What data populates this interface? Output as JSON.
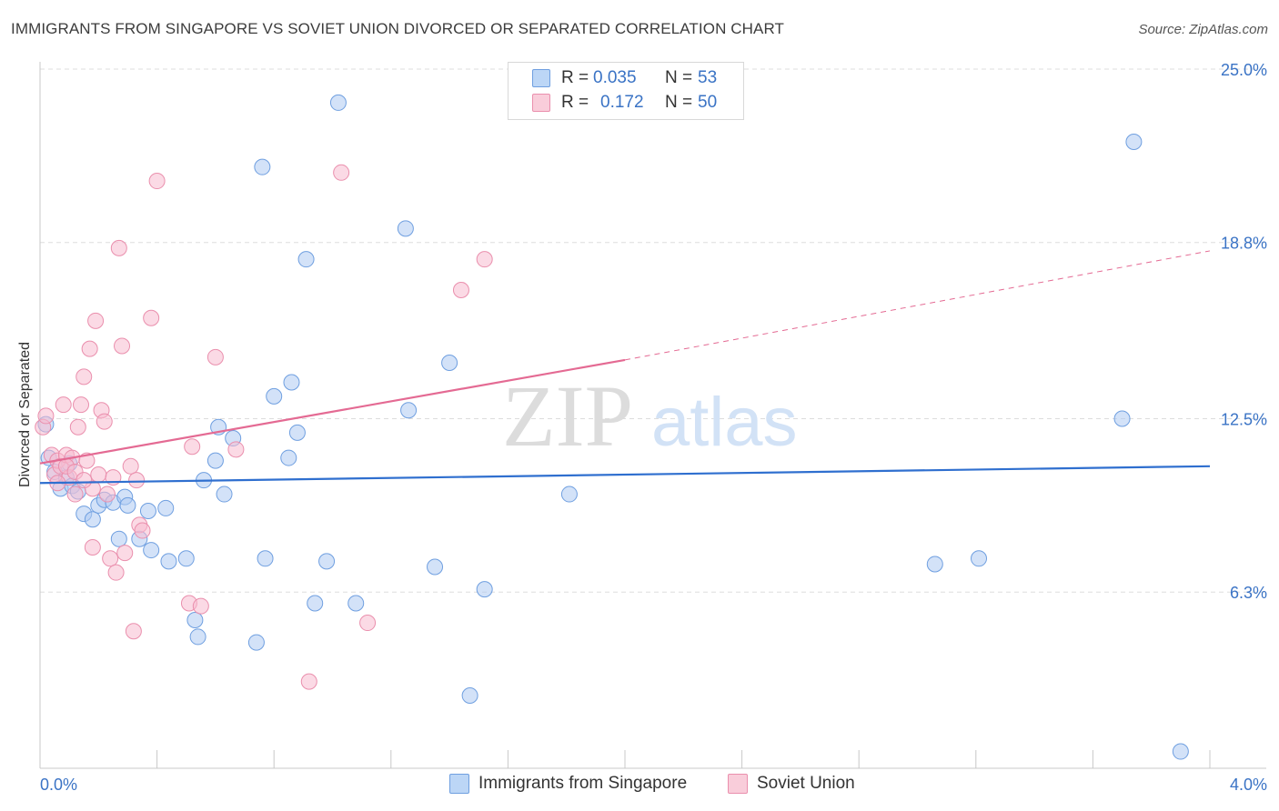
{
  "header": {
    "title": "IMMIGRANTS FROM SINGAPORE VS SOVIET UNION DIVORCED OR SEPARATED CORRELATION CHART",
    "source": "Source: ZipAtlas.com"
  },
  "watermark": {
    "zip": "ZIP",
    "atlas": "atlas"
  },
  "legend": {
    "row1": {
      "r_label": "R = ",
      "r_value": "0.035",
      "n_label": "N = ",
      "n_value": "53"
    },
    "row2": {
      "r_label": "R = ",
      "r_value": "0.172",
      "n_label": "N = ",
      "n_value": "50"
    }
  },
  "bottom_legend": {
    "series1": "Immigrants from Singapore",
    "series2": "Soviet Union"
  },
  "axis": {
    "x_min_label": "0.0%",
    "x_max_label": "4.0%"
  },
  "colors": {
    "blue_fill": "#aecbf2",
    "blue_stroke": "#6f9fe0",
    "blue_line": "#2f6fcf",
    "pink_fill": "#f7bcd0",
    "pink_stroke": "#ea8fad",
    "pink_line": "#e46a93",
    "tick_text": "#3a73c5",
    "grid": "#dddddd"
  },
  "chart_data": {
    "type": "scatter",
    "ylabel": "Divorced or Separated",
    "xlim": [
      0,
      4.0
    ],
    "ylim": [
      0,
      25.0
    ],
    "x_unit": "%",
    "y_ticks": [
      6.3,
      12.5,
      18.8,
      25.0
    ],
    "y_tick_labels": [
      "6.3%",
      "12.5%",
      "18.8%",
      "25.0%"
    ],
    "x_tick_labels": [
      "0.0%",
      "4.0%"
    ],
    "grid": true,
    "legend_position": "top-center",
    "series": [
      {
        "name": "Immigrants from Singapore",
        "color": "#aecbf2",
        "R": 0.035,
        "N": 53,
        "trend": {
          "x": [
            0.0,
            4.0
          ],
          "y": [
            10.2,
            10.8
          ],
          "style": "solid"
        },
        "points": [
          [
            0.02,
            12.3
          ],
          [
            0.03,
            11.1
          ],
          [
            0.05,
            10.6
          ],
          [
            0.07,
            10.0
          ],
          [
            0.09,
            10.4
          ],
          [
            0.11,
            10.1
          ],
          [
            0.13,
            9.9
          ],
          [
            0.15,
            9.1
          ],
          [
            0.18,
            8.9
          ],
          [
            0.2,
            9.4
          ],
          [
            0.22,
            9.6
          ],
          [
            0.25,
            9.5
          ],
          [
            0.27,
            8.2
          ],
          [
            0.29,
            9.7
          ],
          [
            0.3,
            9.4
          ],
          [
            0.34,
            8.2
          ],
          [
            0.37,
            9.2
          ],
          [
            0.38,
            7.8
          ],
          [
            0.43,
            9.3
          ],
          [
            0.44,
            7.4
          ],
          [
            0.5,
            7.5
          ],
          [
            0.53,
            5.3
          ],
          [
            0.54,
            4.7
          ],
          [
            0.56,
            10.3
          ],
          [
            0.6,
            11.0
          ],
          [
            0.61,
            12.2
          ],
          [
            0.63,
            9.8
          ],
          [
            0.66,
            11.8
          ],
          [
            0.74,
            4.5
          ],
          [
            0.76,
            21.5
          ],
          [
            0.77,
            7.5
          ],
          [
            0.8,
            13.3
          ],
          [
            0.85,
            11.1
          ],
          [
            0.86,
            13.8
          ],
          [
            0.88,
            12.0
          ],
          [
            0.91,
            18.2
          ],
          [
            0.94,
            5.9
          ],
          [
            0.98,
            7.4
          ],
          [
            1.02,
            23.8
          ],
          [
            1.08,
            5.9
          ],
          [
            1.25,
            19.3
          ],
          [
            1.26,
            12.8
          ],
          [
            1.35,
            7.2
          ],
          [
            1.4,
            14.5
          ],
          [
            1.47,
            2.6
          ],
          [
            1.52,
            6.4
          ],
          [
            1.81,
            9.8
          ],
          [
            3.06,
            7.3
          ],
          [
            3.21,
            7.5
          ],
          [
            3.7,
            12.5
          ],
          [
            3.74,
            22.4
          ],
          [
            3.9,
            0.6
          ],
          [
            0.1,
            10.9
          ]
        ]
      },
      {
        "name": "Soviet Union",
        "color": "#f7bcd0",
        "R": 0.172,
        "N": 50,
        "trend": {
          "x": [
            0.0,
            2.0
          ],
          "y": [
            10.9,
            14.6
          ],
          "style": "solid",
          "extension": {
            "x": [
              2.0,
              4.0
            ],
            "y": [
              14.6,
              18.5
            ],
            "style": "dashed"
          }
        },
        "points": [
          [
            0.01,
            12.2
          ],
          [
            0.02,
            12.6
          ],
          [
            0.04,
            11.2
          ],
          [
            0.05,
            10.5
          ],
          [
            0.06,
            11.0
          ],
          [
            0.07,
            10.8
          ],
          [
            0.08,
            13.0
          ],
          [
            0.09,
            11.2
          ],
          [
            0.1,
            10.4
          ],
          [
            0.11,
            11.1
          ],
          [
            0.12,
            9.8
          ],
          [
            0.13,
            12.2
          ],
          [
            0.14,
            13.0
          ],
          [
            0.15,
            14.0
          ],
          [
            0.16,
            11.0
          ],
          [
            0.17,
            15.0
          ],
          [
            0.18,
            7.9
          ],
          [
            0.19,
            16.0
          ],
          [
            0.21,
            12.8
          ],
          [
            0.22,
            12.4
          ],
          [
            0.23,
            9.8
          ],
          [
            0.24,
            7.5
          ],
          [
            0.25,
            10.4
          ],
          [
            0.26,
            7.0
          ],
          [
            0.27,
            18.6
          ],
          [
            0.28,
            15.1
          ],
          [
            0.29,
            7.7
          ],
          [
            0.31,
            10.8
          ],
          [
            0.32,
            4.9
          ],
          [
            0.33,
            10.3
          ],
          [
            0.34,
            8.7
          ],
          [
            0.35,
            8.5
          ],
          [
            0.38,
            16.1
          ],
          [
            0.4,
            21.0
          ],
          [
            0.51,
            5.9
          ],
          [
            0.52,
            11.5
          ],
          [
            0.55,
            5.8
          ],
          [
            0.6,
            14.7
          ],
          [
            0.67,
            11.4
          ],
          [
            0.92,
            3.1
          ],
          [
            1.03,
            21.3
          ],
          [
            1.12,
            5.2
          ],
          [
            1.44,
            17.1
          ],
          [
            1.52,
            18.2
          ],
          [
            0.09,
            10.8
          ],
          [
            0.12,
            10.6
          ],
          [
            0.18,
            10.0
          ],
          [
            0.2,
            10.5
          ],
          [
            0.06,
            10.2
          ],
          [
            0.15,
            10.3
          ]
        ]
      }
    ]
  }
}
